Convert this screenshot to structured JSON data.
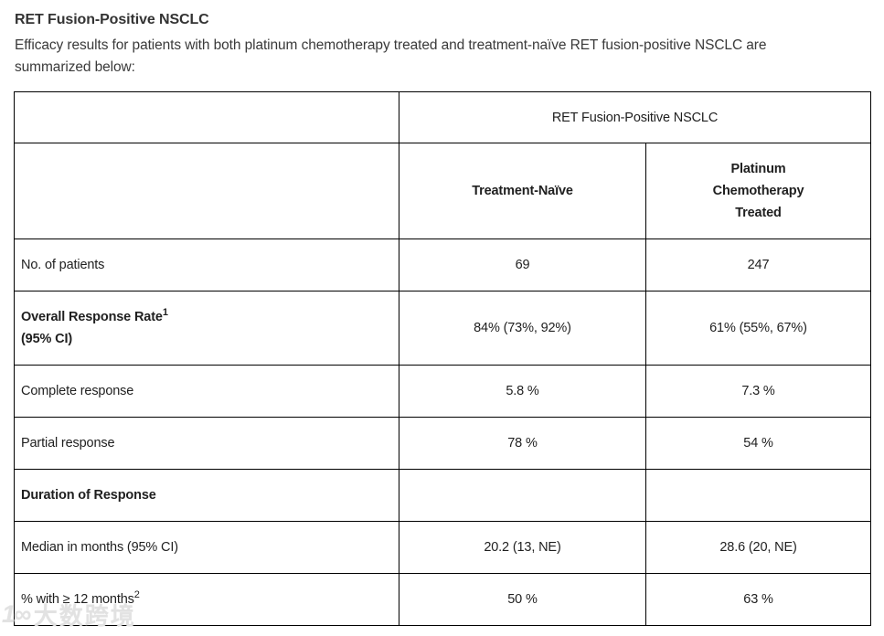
{
  "page": {
    "title": "RET Fusion-Positive NSCLC",
    "intro": "Efficacy results for patients with both platinum chemotherapy treated and treatment-naïve RET fusion-positive NSCLC are\nsummarized below:"
  },
  "table": {
    "span_header": "RET Fusion-Positive NSCLC",
    "columns": [
      {
        "label": "Treatment-Naïve"
      },
      {
        "label": "Platinum\nChemotherapy\nTreated"
      }
    ],
    "rows": [
      {
        "label": "No. of patients",
        "bold": false,
        "values": [
          "69",
          "247"
        ]
      },
      {
        "label": "Overall Response Rate",
        "sup": "1",
        "label2": "(95% CI)",
        "bold": true,
        "values": [
          "84% (73%, 92%)",
          "61% (55%, 67%)"
        ]
      },
      {
        "label": "Complete response",
        "bold": false,
        "values": [
          "5.8 %",
          "7.3 %"
        ]
      },
      {
        "label": "Partial response",
        "bold": false,
        "values": [
          "78 %",
          "54 %"
        ]
      },
      {
        "label": "Duration of Response",
        "bold": true,
        "values": [
          "",
          ""
        ]
      },
      {
        "label": "Median in months (95% CI)",
        "bold": false,
        "values": [
          "20.2 (13, NE)",
          "28.6 (20, NE)"
        ]
      },
      {
        "label": "% with ≥ 12 months",
        "sup": "2",
        "bold": false,
        "values": [
          "50 %",
          "63 %"
        ]
      }
    ]
  },
  "watermark": {
    "logo": "1∞",
    "text": "大数跨境"
  },
  "colors": {
    "text": "#333333",
    "table_border": "#000000",
    "background": "#ffffff",
    "watermark": "#e2e2e2"
  }
}
